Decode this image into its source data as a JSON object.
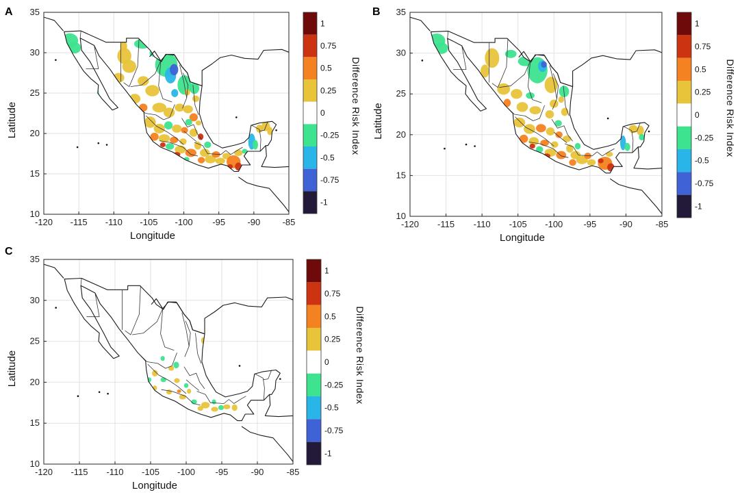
{
  "figure": {
    "panels": [
      {
        "letter": "A",
        "xlabel": "Longitude",
        "ylabel": "Latitude",
        "x_ticks": [
          "-120",
          "-115",
          "-110",
          "-105",
          "-100",
          "-95",
          "-90",
          "-85"
        ],
        "y_ticks": [
          "35",
          "30",
          "25",
          "20",
          "15",
          "10"
        ],
        "colorbar_title": "Difference Risk Index",
        "colorbar_ticks": [
          "1",
          "0.75",
          "0.5",
          "0.25",
          "0",
          "-0.25",
          "-0.5",
          "-0.75",
          "-1"
        ]
      },
      {
        "letter": "B",
        "xlabel": "Longitude",
        "ylabel": "Latitude",
        "x_ticks": [
          "-120",
          "-115",
          "-110",
          "-105",
          "-100",
          "-95",
          "-90",
          "-85"
        ],
        "y_ticks": [
          "35",
          "30",
          "25",
          "20",
          "15",
          "10"
        ],
        "colorbar_title": "Difference Risk Index",
        "colorbar_ticks": [
          "1",
          "0.75",
          "0.5",
          "0.25",
          "0",
          "-0.25",
          "-0.5",
          "-0.75",
          "-1"
        ]
      },
      {
        "letter": "C",
        "xlabel": "Longitude",
        "ylabel": "Latitude",
        "x_ticks": [
          "-120",
          "-115",
          "-110",
          "-105",
          "-100",
          "-95",
          "-90",
          "-85"
        ],
        "y_ticks": [
          "35",
          "30",
          "25",
          "20",
          "15",
          "10"
        ],
        "colorbar_title": "Difference Risk Index",
        "colorbar_ticks": [
          "1",
          "0.75",
          "0.5",
          "0.25",
          "0",
          "-0.25",
          "-0.5",
          "-0.75",
          "-1"
        ]
      }
    ],
    "colors": {
      "c1": "#6e0a0a",
      "c075": "#cc3310",
      "c05": "#f58220",
      "c025": "#e8c43a",
      "c0": "#ffffff",
      "cm025": "#3ee38f",
      "cm05": "#29b5e8",
      "cm075": "#3f63d6",
      "cm1": "#231a3a"
    }
  }
}
